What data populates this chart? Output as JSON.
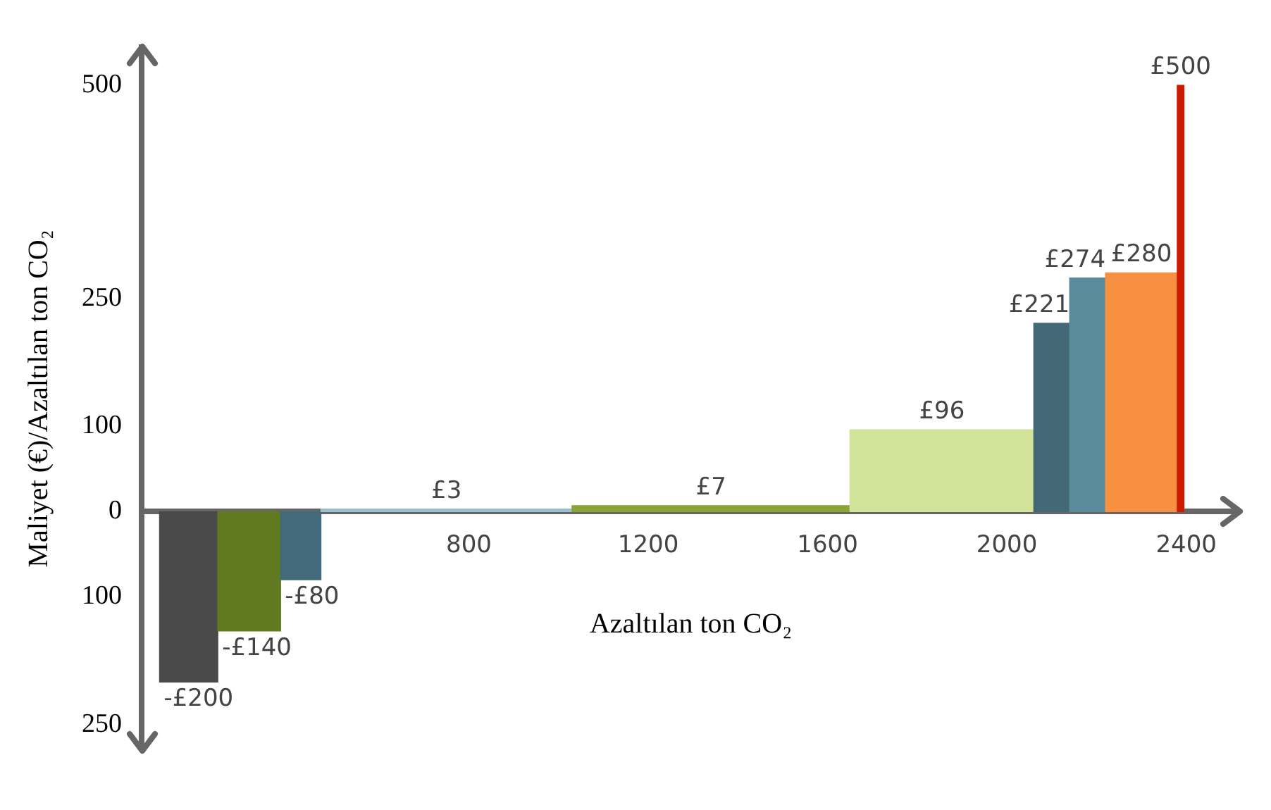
{
  "chart_data": {
    "type": "histogram",
    "xlabel": "Azaltılan ton CO₂",
    "ylabel": "Maliyet (€)/Azaltılan ton CO₂",
    "bins": [
      110,
      240,
      380,
      470,
      1030,
      1650,
      2060,
      2140,
      2220,
      2380,
      2395
    ],
    "values": [
      -200,
      -140,
      -80,
      3,
      7,
      96,
      221,
      274,
      280,
      500
    ],
    "value_labels": [
      "-£200",
      "-£140",
      "-£80",
      "£3",
      "£7",
      "£96",
      "£221",
      "£274",
      "£280",
      "£500"
    ],
    "colors": [
      "#4a4a4a",
      "#617a22",
      "#436a7a",
      "#98bfcc",
      "#8aa535",
      "#d2e49a",
      "#436977",
      "#5a8b9c",
      "#f79040",
      "#cc1b00"
    ],
    "xlim": [
      70,
      2520
    ],
    "xticks": [
      800,
      1200,
      1600,
      2000,
      2400
    ],
    "ylim": [
      -280,
      545
    ],
    "yticks": [
      {
        "value": -250,
        "label": "250"
      },
      {
        "value": -100,
        "label": "100"
      },
      0,
      100,
      250,
      500
    ],
    "grid": false,
    "legend": false
  }
}
